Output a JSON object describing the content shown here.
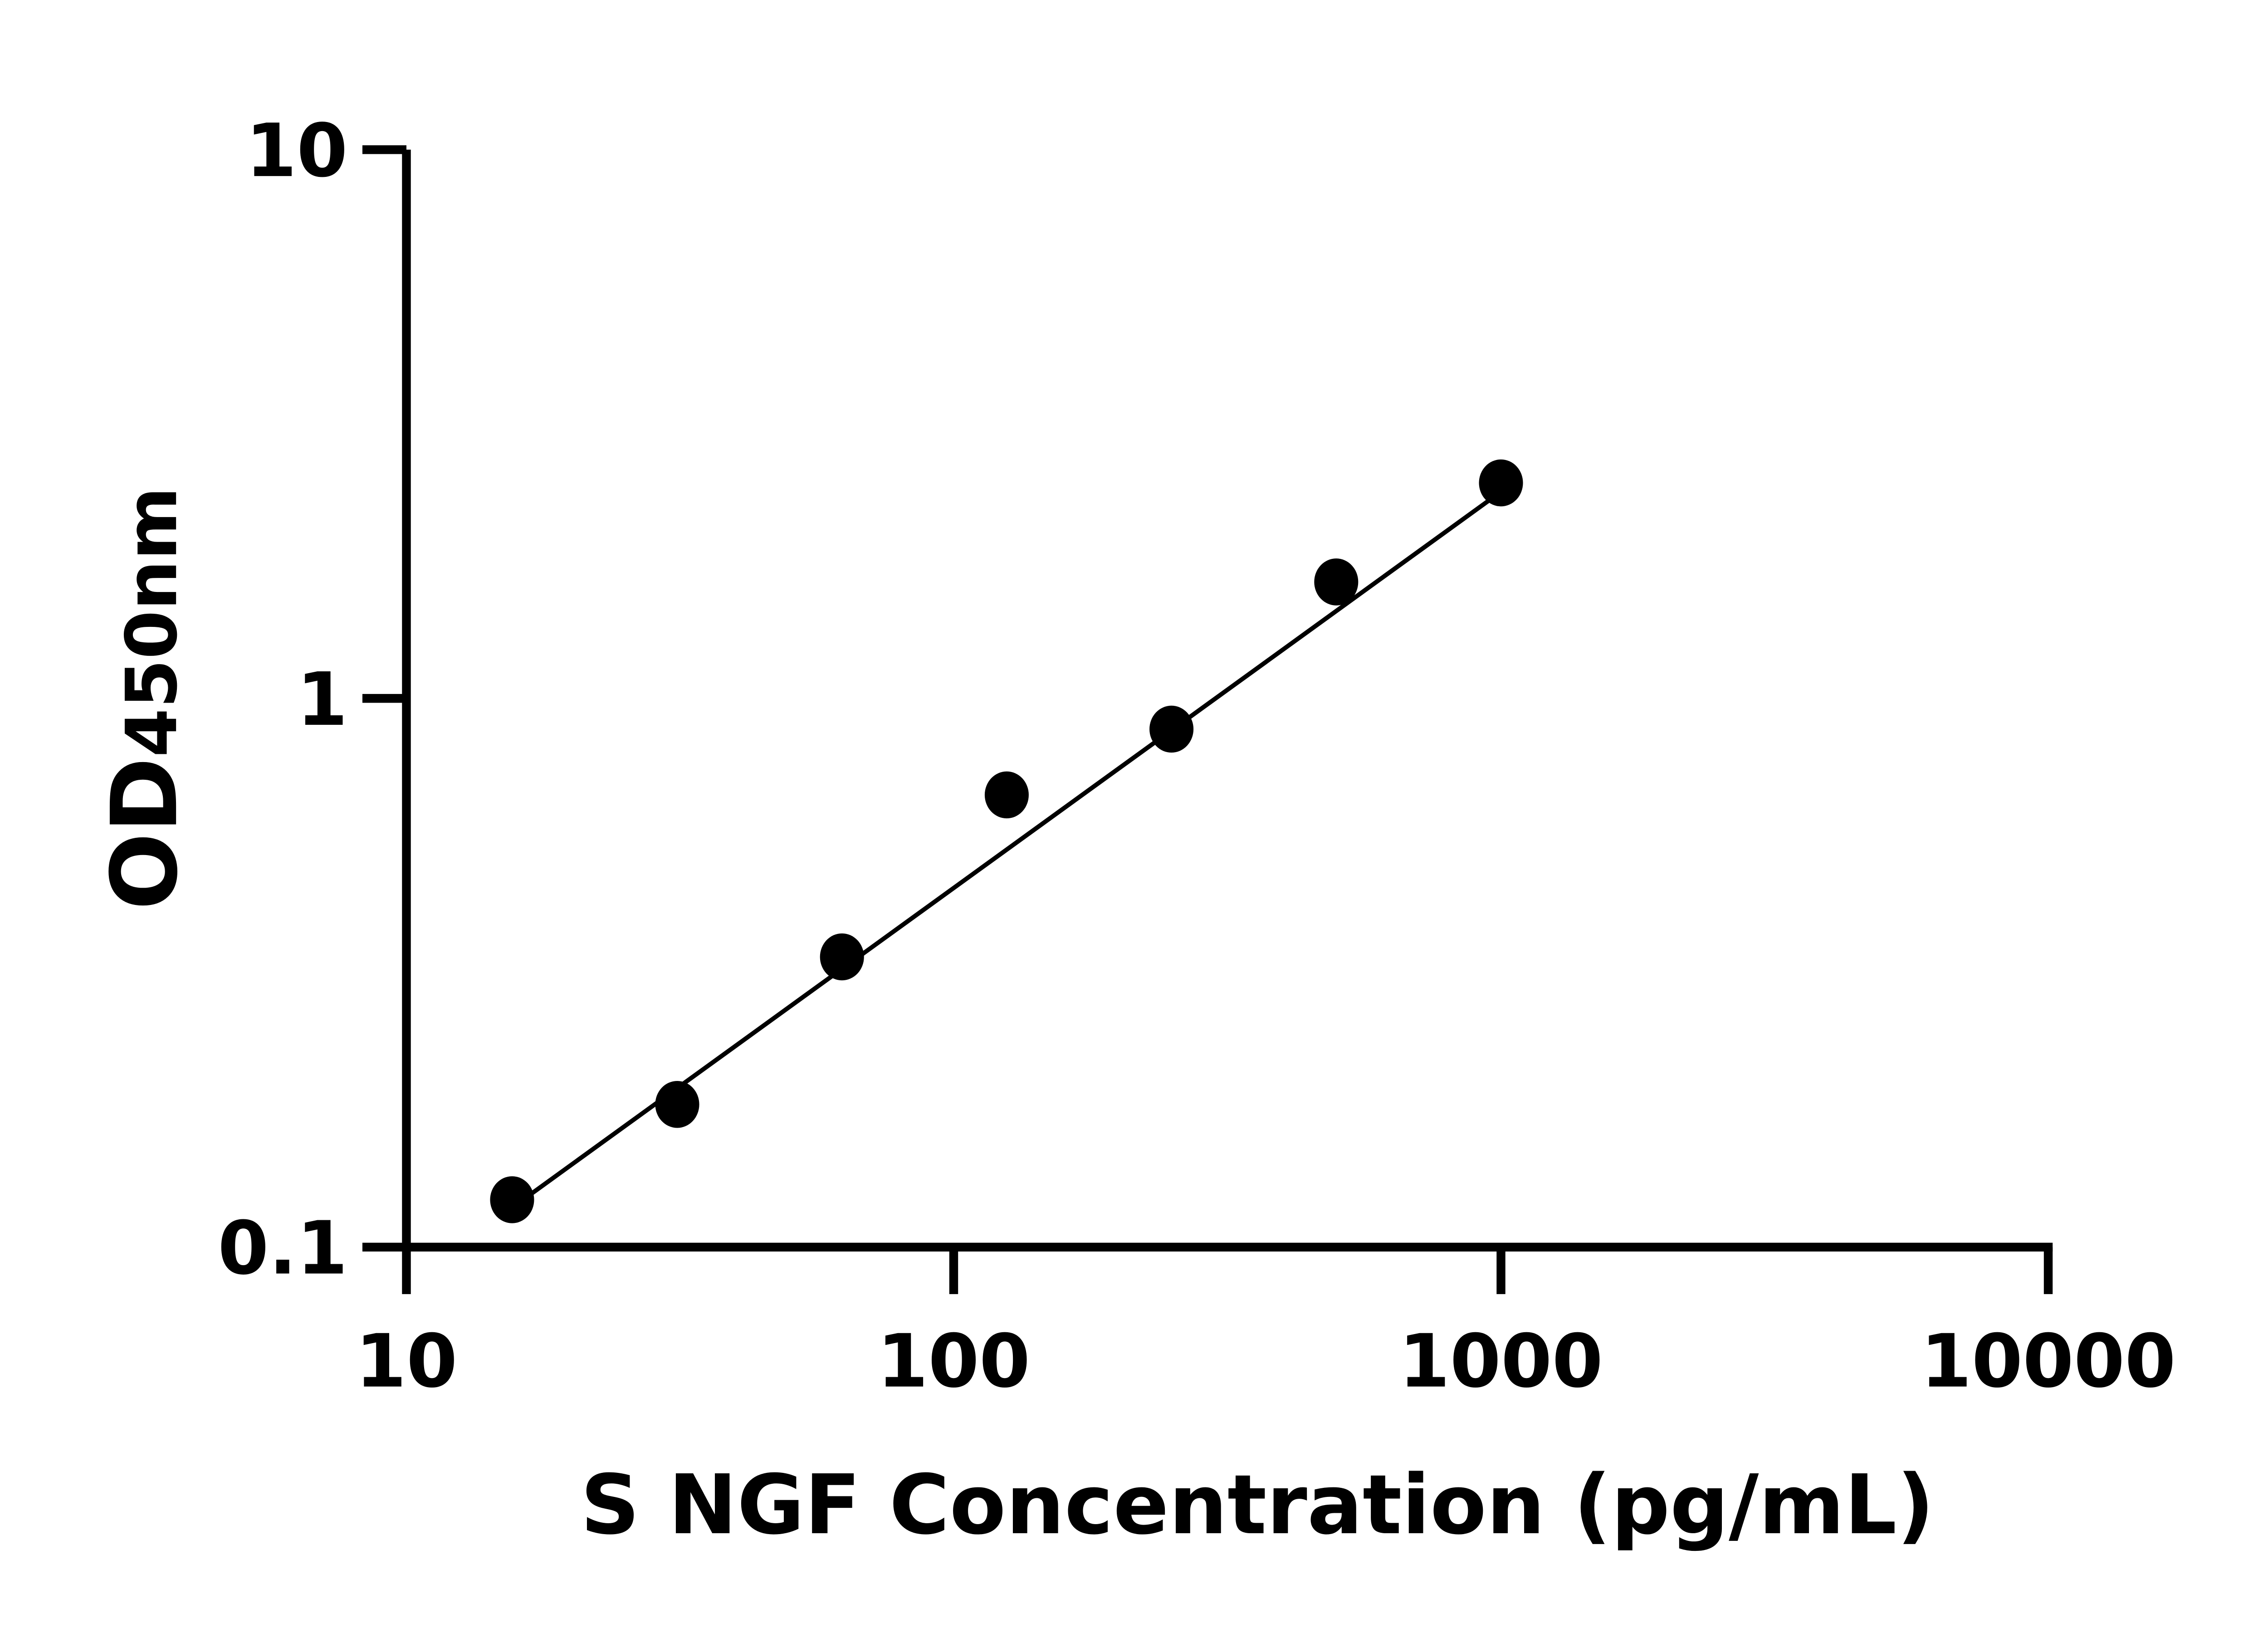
{
  "chart_data": {
    "type": "scatter",
    "xlabel": "S NGF Concentration (pg/mL)",
    "ylabel": {
      "main": "OD",
      "sub": "450nm"
    },
    "x_scale": "log",
    "y_scale": "log",
    "xlim": [
      10,
      10000
    ],
    "ylim": [
      0.1,
      10
    ],
    "x_ticks": [
      "10",
      "100",
      "1000",
      "10000"
    ],
    "y_ticks": [
      "0.1",
      "1",
      "10"
    ],
    "grid": false,
    "legend": "none",
    "series": [
      {
        "x": [
          15.6,
          31.25,
          62.5,
          125,
          250,
          500,
          1000
        ],
        "y": [
          0.122,
          0.182,
          0.338,
          0.667,
          0.879,
          1.63,
          2.47
        ],
        "marker": "circle",
        "color": "#000000"
      }
    ],
    "fit_line": {
      "x": [
        15.6,
        1000
      ],
      "y": [
        0.118,
        2.38
      ],
      "color": "#000000"
    }
  }
}
